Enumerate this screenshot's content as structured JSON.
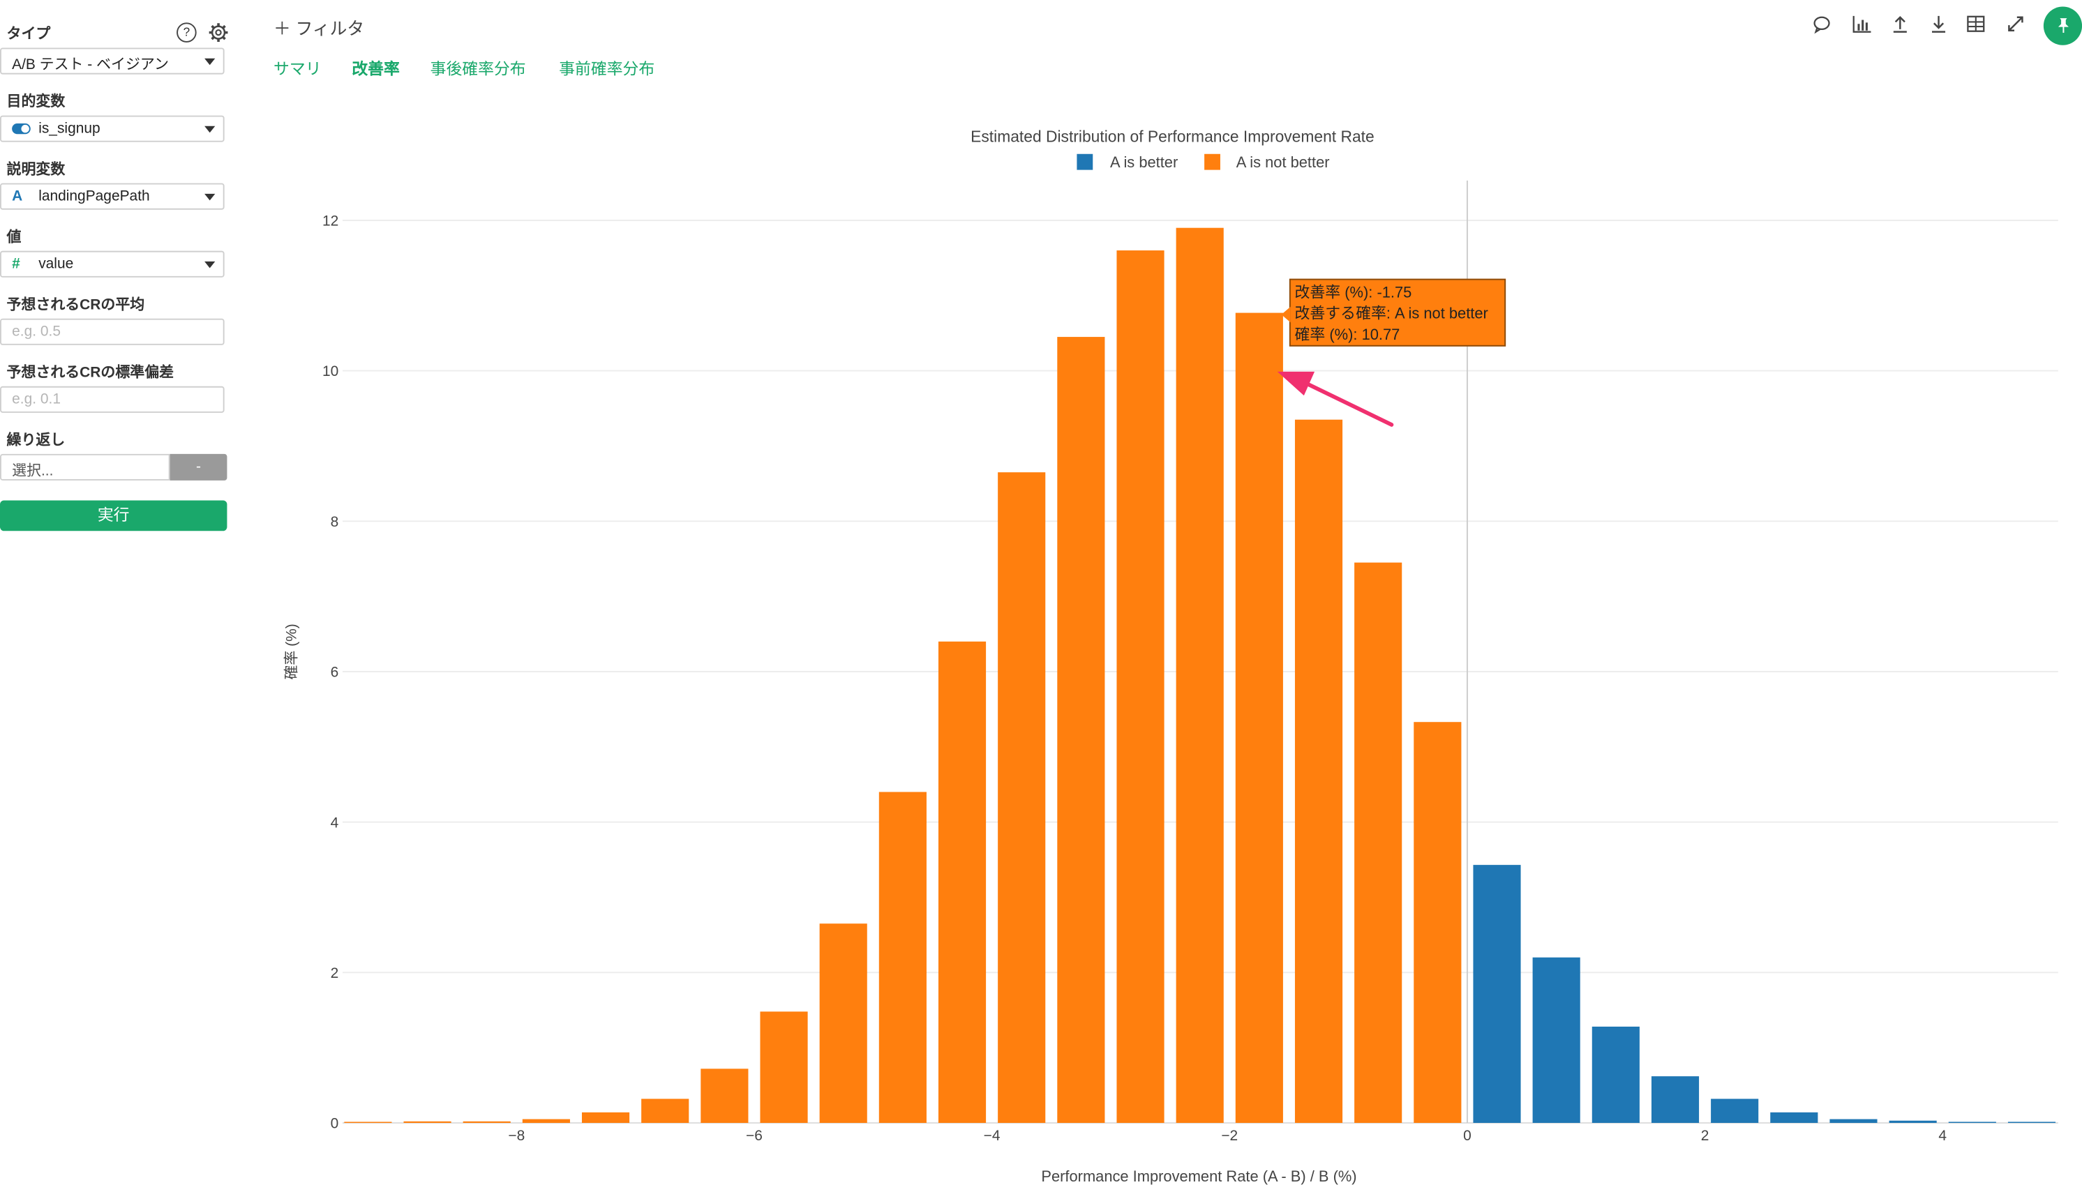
{
  "sidebar": {
    "type_label": "タイプ",
    "help_glyph": "?",
    "type_value": "A/B テスト - ベイジアン",
    "target_label": "目的変数",
    "target_value": "is_signup",
    "explain_label": "説明変数",
    "explain_icon": "A",
    "explain_value": "landingPagePath",
    "value_label": "値",
    "value_icon": "#",
    "value_value": "value",
    "cr_mean_label": "予想されるCRの平均",
    "cr_mean_placeholder": "e.g. 0.5",
    "cr_sd_label": "予想されるCRの標準偏差",
    "cr_sd_placeholder": "e.g. 0.1",
    "repeat_label": "繰り返し",
    "repeat_placeholder": "選択...",
    "repeat_button": "-",
    "run_button": "実行"
  },
  "header": {
    "filter_label": "＋ フィルタ",
    "tabs": [
      {
        "label": "サマリ",
        "active": false
      },
      {
        "label": "改善率",
        "active": true
      },
      {
        "label": "事後確率分布",
        "active": false
      },
      {
        "label": "事前確率分布",
        "active": false
      }
    ],
    "icons": [
      "comment-icon",
      "bar-chart-icon",
      "upload-icon",
      "download-icon",
      "table-icon",
      "expand-icon",
      "pin-icon"
    ]
  },
  "chart_data": {
    "type": "bar",
    "title": "Estimated Distribution of Performance Improvement Rate",
    "xlabel": "Performance Improvement Rate (A - B) / B (%)",
    "ylabel": "確率 (%)",
    "xlim": [
      -9.5,
      5
    ],
    "ylim": [
      0,
      12.8
    ],
    "x_ticks": [
      -8,
      -6,
      -4,
      -2,
      0,
      2,
      4
    ],
    "x_tick_labels": [
      "−8",
      "−6",
      "−4",
      "−2",
      "0",
      "2",
      "4"
    ],
    "y_ticks": [
      0,
      2,
      4,
      6,
      8,
      10,
      12
    ],
    "legend_position": "top-center",
    "colors": {
      "A is better": "#1f77b4",
      "A is not better": "#ff7f0e"
    },
    "series": [
      {
        "name": "A is not better",
        "x": [
          -9.25,
          -8.75,
          -8.25,
          -7.75,
          -7.25,
          -6.75,
          -6.25,
          -5.75,
          -5.25,
          -4.75,
          -4.25,
          -3.75,
          -3.25,
          -2.75,
          -2.25,
          -1.75,
          -1.25,
          -0.75,
          -0.25
        ],
        "values": [
          0.01,
          0.02,
          0.02,
          0.05,
          0.14,
          0.32,
          0.72,
          1.48,
          2.65,
          4.4,
          6.4,
          8.65,
          10.45,
          11.6,
          11.9,
          10.77,
          9.35,
          7.45,
          5.33
        ]
      },
      {
        "name": "A is better",
        "x": [
          0.25,
          0.75,
          1.25,
          1.75,
          2.25,
          2.75,
          3.25,
          3.75,
          4.25,
          4.75
        ],
        "values": [
          3.43,
          2.2,
          1.28,
          0.62,
          0.32,
          0.14,
          0.05,
          0.03,
          0.01,
          0.01
        ]
      }
    ],
    "vertical_line_x": 0,
    "tooltip": {
      "lines": [
        "改善率 (%): -1.75",
        "改善する確率: A is not better",
        "確率 (%): 10.77"
      ]
    }
  }
}
